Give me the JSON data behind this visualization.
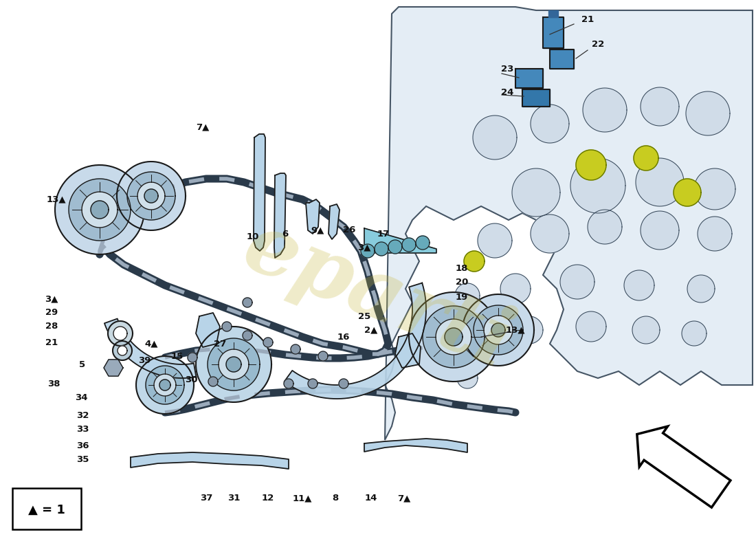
{
  "bg_color": "#ffffff",
  "blue_light": "#b8d4e8",
  "blue_mid": "#7aaac8",
  "blue_dark": "#4a7a9b",
  "outline": "#1a1a1a",
  "engine_fill": "#e2ecf4",
  "engine_stroke": "#334455",
  "chain_dark": "#2a3a4a",
  "chain_light": "#9aaabb",
  "yellow_seal": "#c8cc20",
  "sensor_blue": "#4488bb",
  "watermark_color": "#c8b840",
  "text_color": "#111111",
  "figsize": [
    11.0,
    8.0
  ],
  "dpi": 100
}
